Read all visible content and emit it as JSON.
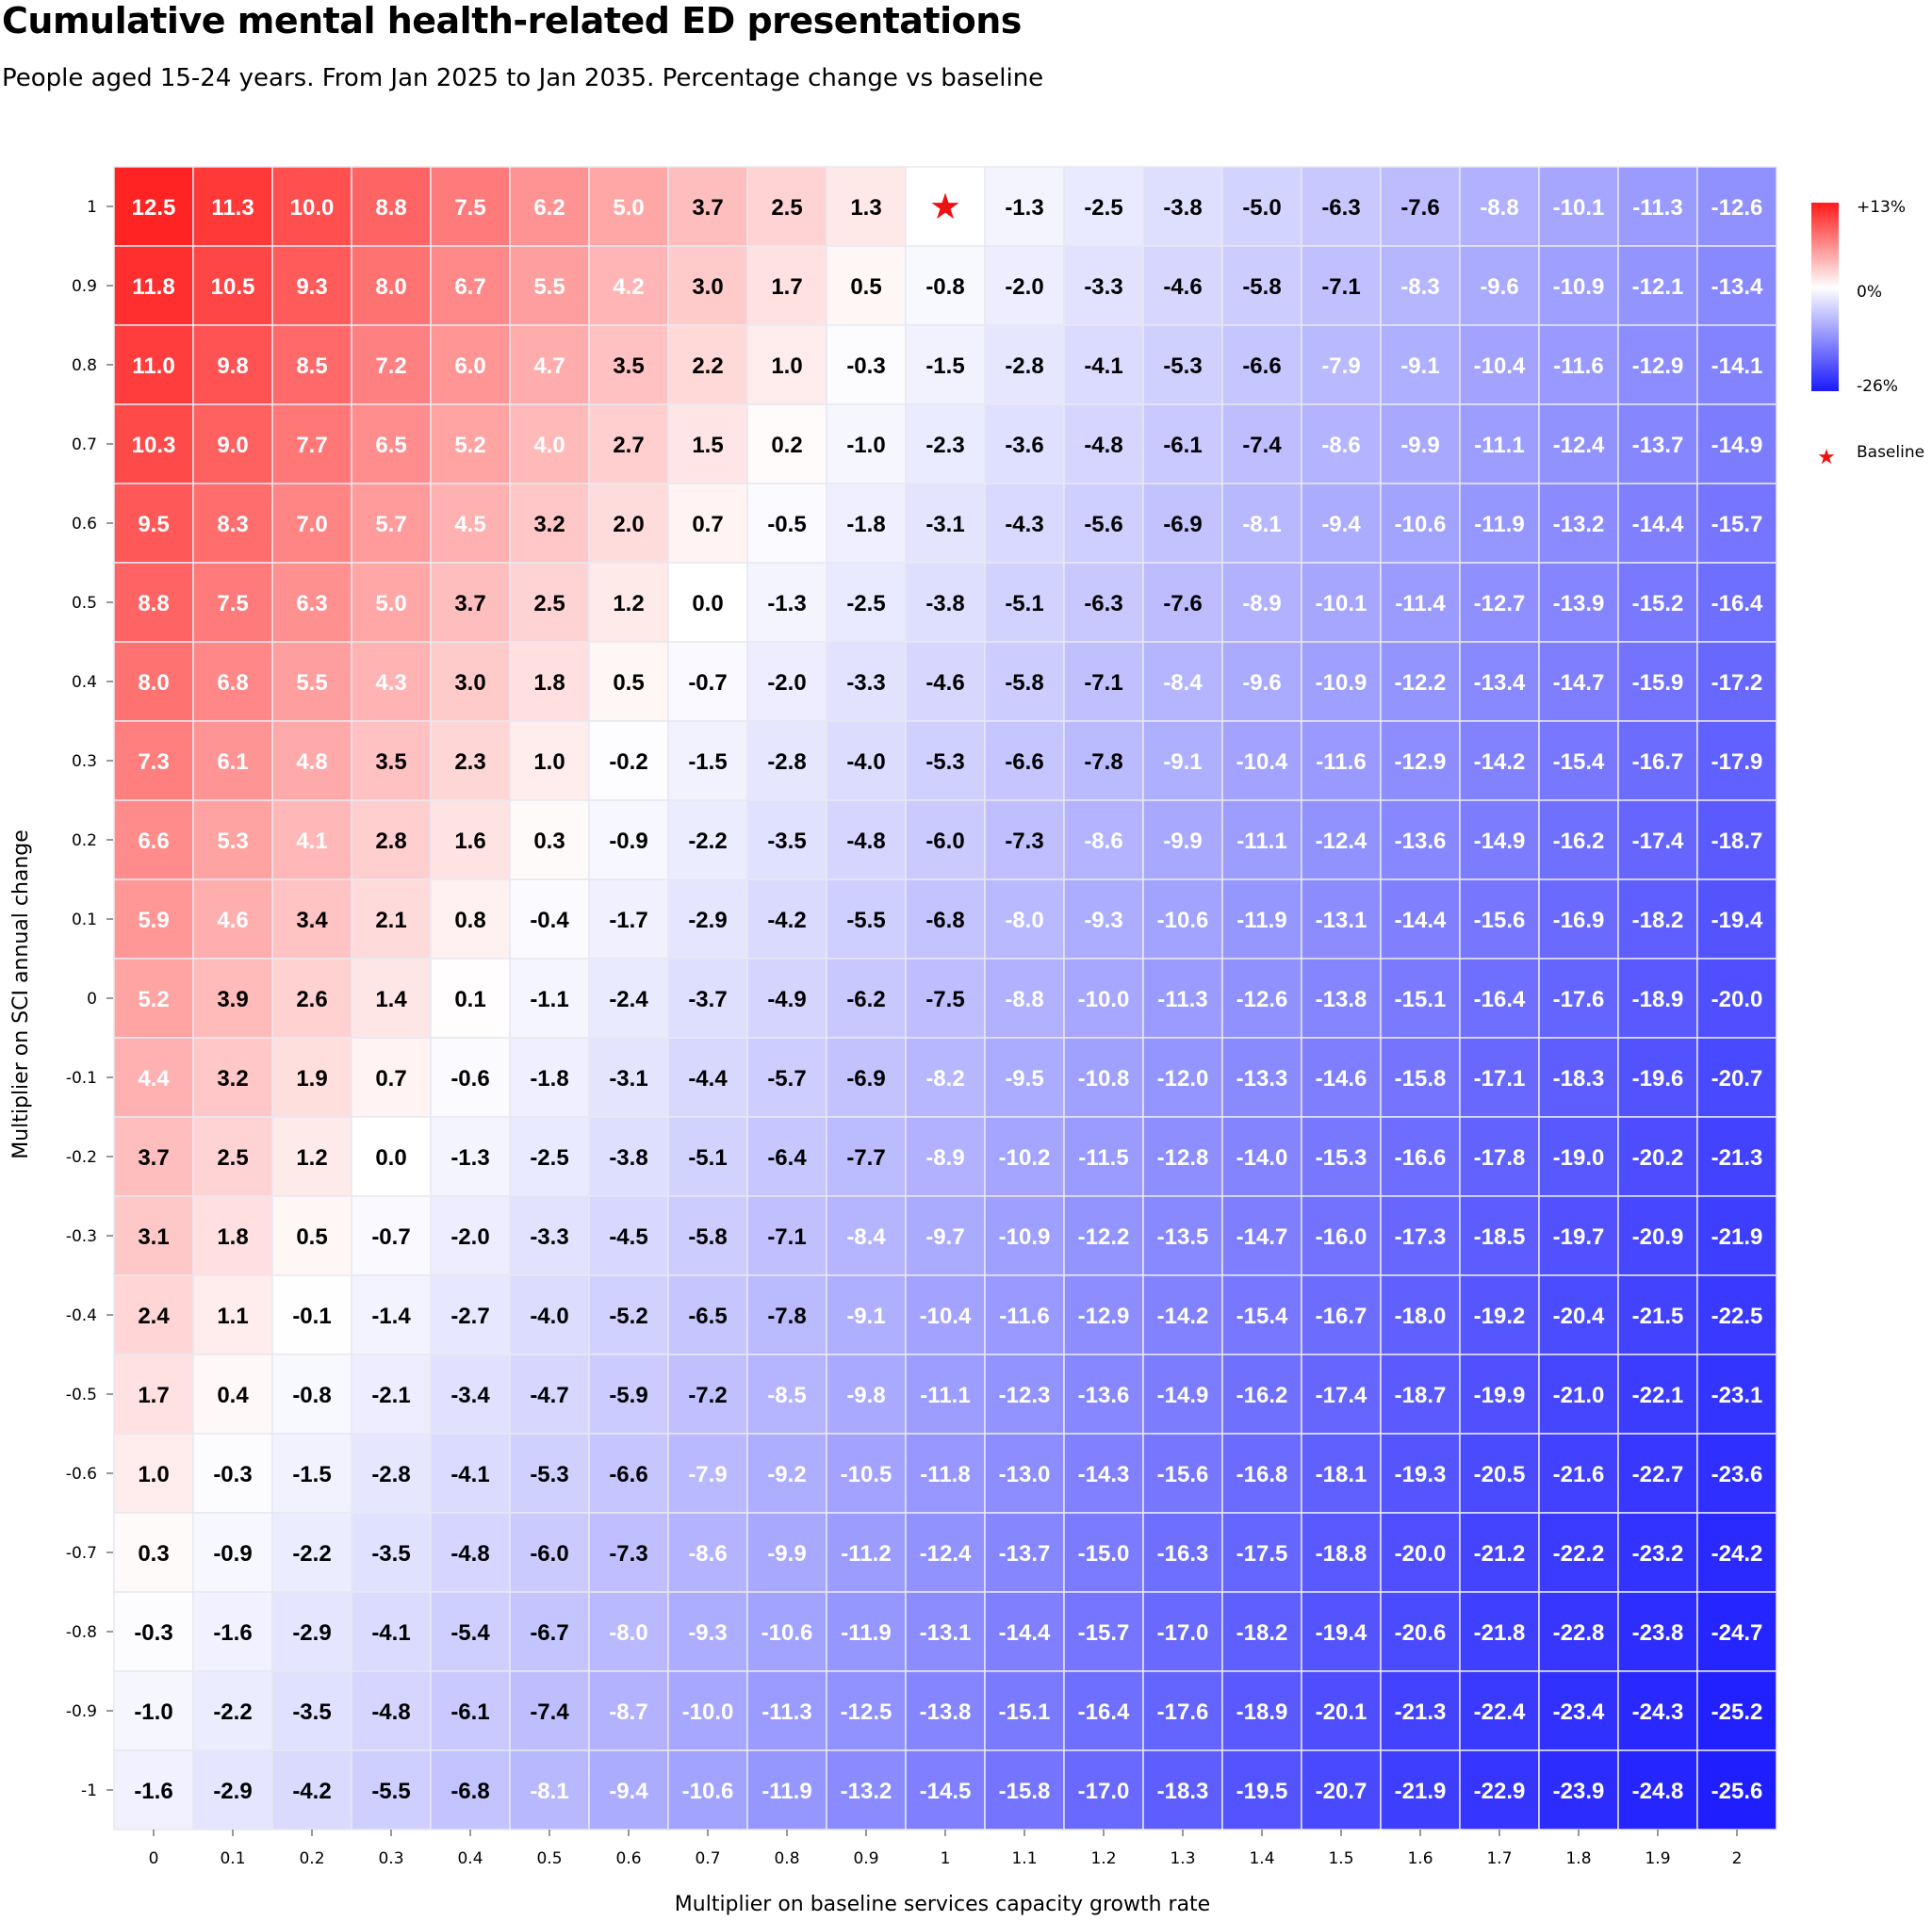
{
  "chart_data": {
    "type": "heatmap",
    "title": "Cumulative mental health-related ED presentations",
    "subtitle": "People aged 15-24 years. From Jan 2025 to Jan 2035. Percentage change vs baseline",
    "xlabel": "Multiplier on baseline services capacity growth rate",
    "ylabel": "Multiplier on SCI annual change",
    "x": [
      "0",
      "0.1",
      "0.2",
      "0.3",
      "0.4",
      "0.5",
      "0.6",
      "0.7",
      "0.8",
      "0.9",
      "1",
      "1.1",
      "1.2",
      "1.3",
      "1.4",
      "1.5",
      "1.6",
      "1.7",
      "1.8",
      "1.9",
      "2"
    ],
    "y": [
      "1",
      "0.9",
      "0.8",
      "0.7",
      "0.6",
      "0.5",
      "0.4",
      "0.3",
      "0.2",
      "0.1",
      "0",
      "-0.1",
      "-0.2",
      "-0.3",
      "-0.4",
      "-0.5",
      "-0.6",
      "-0.7",
      "-0.8",
      "-0.9",
      "-1"
    ],
    "values": [
      [
        12.5,
        11.3,
        10.0,
        8.8,
        7.5,
        6.2,
        5.0,
        3.7,
        2.5,
        1.3,
        null,
        -1.3,
        -2.5,
        -3.8,
        -5.0,
        -6.3,
        -7.6,
        -8.8,
        -10.1,
        -11.3,
        -12.6
      ],
      [
        11.8,
        10.5,
        9.3,
        8.0,
        6.7,
        5.5,
        4.2,
        3.0,
        1.7,
        0.5,
        -0.8,
        -2.0,
        -3.3,
        -4.6,
        -5.8,
        -7.1,
        -8.3,
        -9.6,
        -10.9,
        -12.1,
        -13.4
      ],
      [
        11.0,
        9.8,
        8.5,
        7.2,
        6.0,
        4.7,
        3.5,
        2.2,
        1.0,
        -0.3,
        -1.5,
        -2.8,
        -4.1,
        -5.3,
        -6.6,
        -7.9,
        -9.1,
        -10.4,
        -11.6,
        -12.9,
        -14.1
      ],
      [
        10.3,
        9.0,
        7.7,
        6.5,
        5.2,
        4.0,
        2.7,
        1.5,
        0.2,
        -1.0,
        -2.3,
        -3.6,
        -4.8,
        -6.1,
        -7.4,
        -8.6,
        -9.9,
        -11.1,
        -12.4,
        -13.7,
        -14.9
      ],
      [
        9.5,
        8.3,
        7.0,
        5.7,
        4.5,
        3.2,
        2.0,
        0.7,
        -0.5,
        -1.8,
        -3.1,
        -4.3,
        -5.6,
        -6.9,
        -8.1,
        -9.4,
        -10.6,
        -11.9,
        -13.2,
        -14.4,
        -15.7
      ],
      [
        8.8,
        7.5,
        6.3,
        5.0,
        3.7,
        2.5,
        1.2,
        0.0,
        -1.3,
        -2.5,
        -3.8,
        -5.1,
        -6.3,
        -7.6,
        -8.9,
        -10.1,
        -11.4,
        -12.7,
        -13.9,
        -15.2,
        -16.4
      ],
      [
        8.0,
        6.8,
        5.5,
        4.3,
        3.0,
        1.8,
        0.5,
        -0.7,
        -2.0,
        -3.3,
        -4.6,
        -5.8,
        -7.1,
        -8.4,
        -9.6,
        -10.9,
        -12.2,
        -13.4,
        -14.7,
        -15.9,
        -17.2
      ],
      [
        7.3,
        6.1,
        4.8,
        3.5,
        2.3,
        1.0,
        -0.2,
        -1.5,
        -2.8,
        -4.0,
        -5.3,
        -6.6,
        -7.8,
        -9.1,
        -10.4,
        -11.6,
        -12.9,
        -14.2,
        -15.4,
        -16.7,
        -17.9
      ],
      [
        6.6,
        5.3,
        4.1,
        2.8,
        1.6,
        0.3,
        -0.9,
        -2.2,
        -3.5,
        -4.8,
        -6.0,
        -7.3,
        -8.6,
        -9.9,
        -11.1,
        -12.4,
        -13.6,
        -14.9,
        -16.2,
        -17.4,
        -18.7
      ],
      [
        5.9,
        4.6,
        3.4,
        2.1,
        0.8,
        -0.4,
        -1.7,
        -2.9,
        -4.2,
        -5.5,
        -6.8,
        -8.0,
        -9.3,
        -10.6,
        -11.9,
        -13.1,
        -14.4,
        -15.6,
        -16.9,
        -18.2,
        -19.4
      ],
      [
        5.2,
        3.9,
        2.6,
        1.4,
        0.1,
        -1.1,
        -2.4,
        -3.7,
        -4.9,
        -6.2,
        -7.5,
        -8.8,
        -10.0,
        -11.3,
        -12.6,
        -13.8,
        -15.1,
        -16.4,
        -17.6,
        -18.9,
        -20.0
      ],
      [
        4.4,
        3.2,
        1.9,
        0.7,
        -0.6,
        -1.8,
        -3.1,
        -4.4,
        -5.7,
        -6.9,
        -8.2,
        -9.5,
        -10.8,
        -12.0,
        -13.3,
        -14.6,
        -15.8,
        -17.1,
        -18.3,
        -19.6,
        -20.7
      ],
      [
        3.7,
        2.5,
        1.2,
        0.0,
        -1.3,
        -2.5,
        -3.8,
        -5.1,
        -6.4,
        -7.7,
        -8.9,
        -10.2,
        -11.5,
        -12.8,
        -14.0,
        -15.3,
        -16.6,
        -17.8,
        -19.0,
        -20.2,
        -21.3
      ],
      [
        3.1,
        1.8,
        0.5,
        -0.7,
        -2.0,
        -3.3,
        -4.5,
        -5.8,
        -7.1,
        -8.4,
        -9.7,
        -10.9,
        -12.2,
        -13.5,
        -14.7,
        -16.0,
        -17.3,
        -18.5,
        -19.7,
        -20.9,
        -21.9
      ],
      [
        2.4,
        1.1,
        -0.1,
        -1.4,
        -2.7,
        -4.0,
        -5.2,
        -6.5,
        -7.8,
        -9.1,
        -10.4,
        -11.6,
        -12.9,
        -14.2,
        -15.4,
        -16.7,
        -18.0,
        -19.2,
        -20.4,
        -21.5,
        -22.5
      ],
      [
        1.7,
        0.4,
        -0.8,
        -2.1,
        -3.4,
        -4.7,
        -5.9,
        -7.2,
        -8.5,
        -9.8,
        -11.1,
        -12.3,
        -13.6,
        -14.9,
        -16.2,
        -17.4,
        -18.7,
        -19.9,
        -21.0,
        -22.1,
        -23.1
      ],
      [
        1.0,
        -0.3,
        -1.5,
        -2.8,
        -4.1,
        -5.3,
        -6.6,
        -7.9,
        -9.2,
        -10.5,
        -11.8,
        -13.0,
        -14.3,
        -15.6,
        -16.8,
        -18.1,
        -19.3,
        -20.5,
        -21.6,
        -22.7,
        -23.6
      ],
      [
        0.3,
        -0.9,
        -2.2,
        -3.5,
        -4.8,
        -6.0,
        -7.3,
        -8.6,
        -9.9,
        -11.2,
        -12.4,
        -13.7,
        -15.0,
        -16.3,
        -17.5,
        -18.8,
        -20.0,
        -21.2,
        -22.2,
        -23.2,
        -24.2
      ],
      [
        -0.3,
        -1.6,
        -2.9,
        -4.1,
        -5.4,
        -6.7,
        -8.0,
        -9.3,
        -10.6,
        -11.9,
        -13.1,
        -14.4,
        -15.7,
        -17.0,
        -18.2,
        -19.4,
        -20.6,
        -21.8,
        -22.8,
        -23.8,
        -24.7
      ],
      [
        -1.0,
        -2.2,
        -3.5,
        -4.8,
        -6.1,
        -7.4,
        -8.7,
        -10.0,
        -11.3,
        -12.5,
        -13.8,
        -15.1,
        -16.4,
        -17.6,
        -18.9,
        -20.1,
        -21.3,
        -22.4,
        -23.4,
        -24.3,
        -25.2
      ],
      [
        -1.6,
        -2.9,
        -4.2,
        -5.5,
        -6.8,
        -8.1,
        -9.4,
        -10.6,
        -11.9,
        -13.2,
        -14.5,
        -15.8,
        -17.0,
        -18.3,
        -19.5,
        -20.7,
        -21.9,
        -22.9,
        -23.9,
        -24.8,
        -25.6
      ]
    ],
    "baseline": {
      "x": "1",
      "y": "1",
      "marker": "star",
      "label": "Baseline"
    },
    "colorscale": {
      "min": -26,
      "mid": 0,
      "max": 13,
      "min_label": "-26%",
      "mid_label": "0%",
      "max_label": "+13%",
      "low_color": "#1a1aff",
      "mid_color": "#ffffff",
      "high_color": "#ff1a1a"
    },
    "marker_color": "#ee1111",
    "grid": true
  }
}
